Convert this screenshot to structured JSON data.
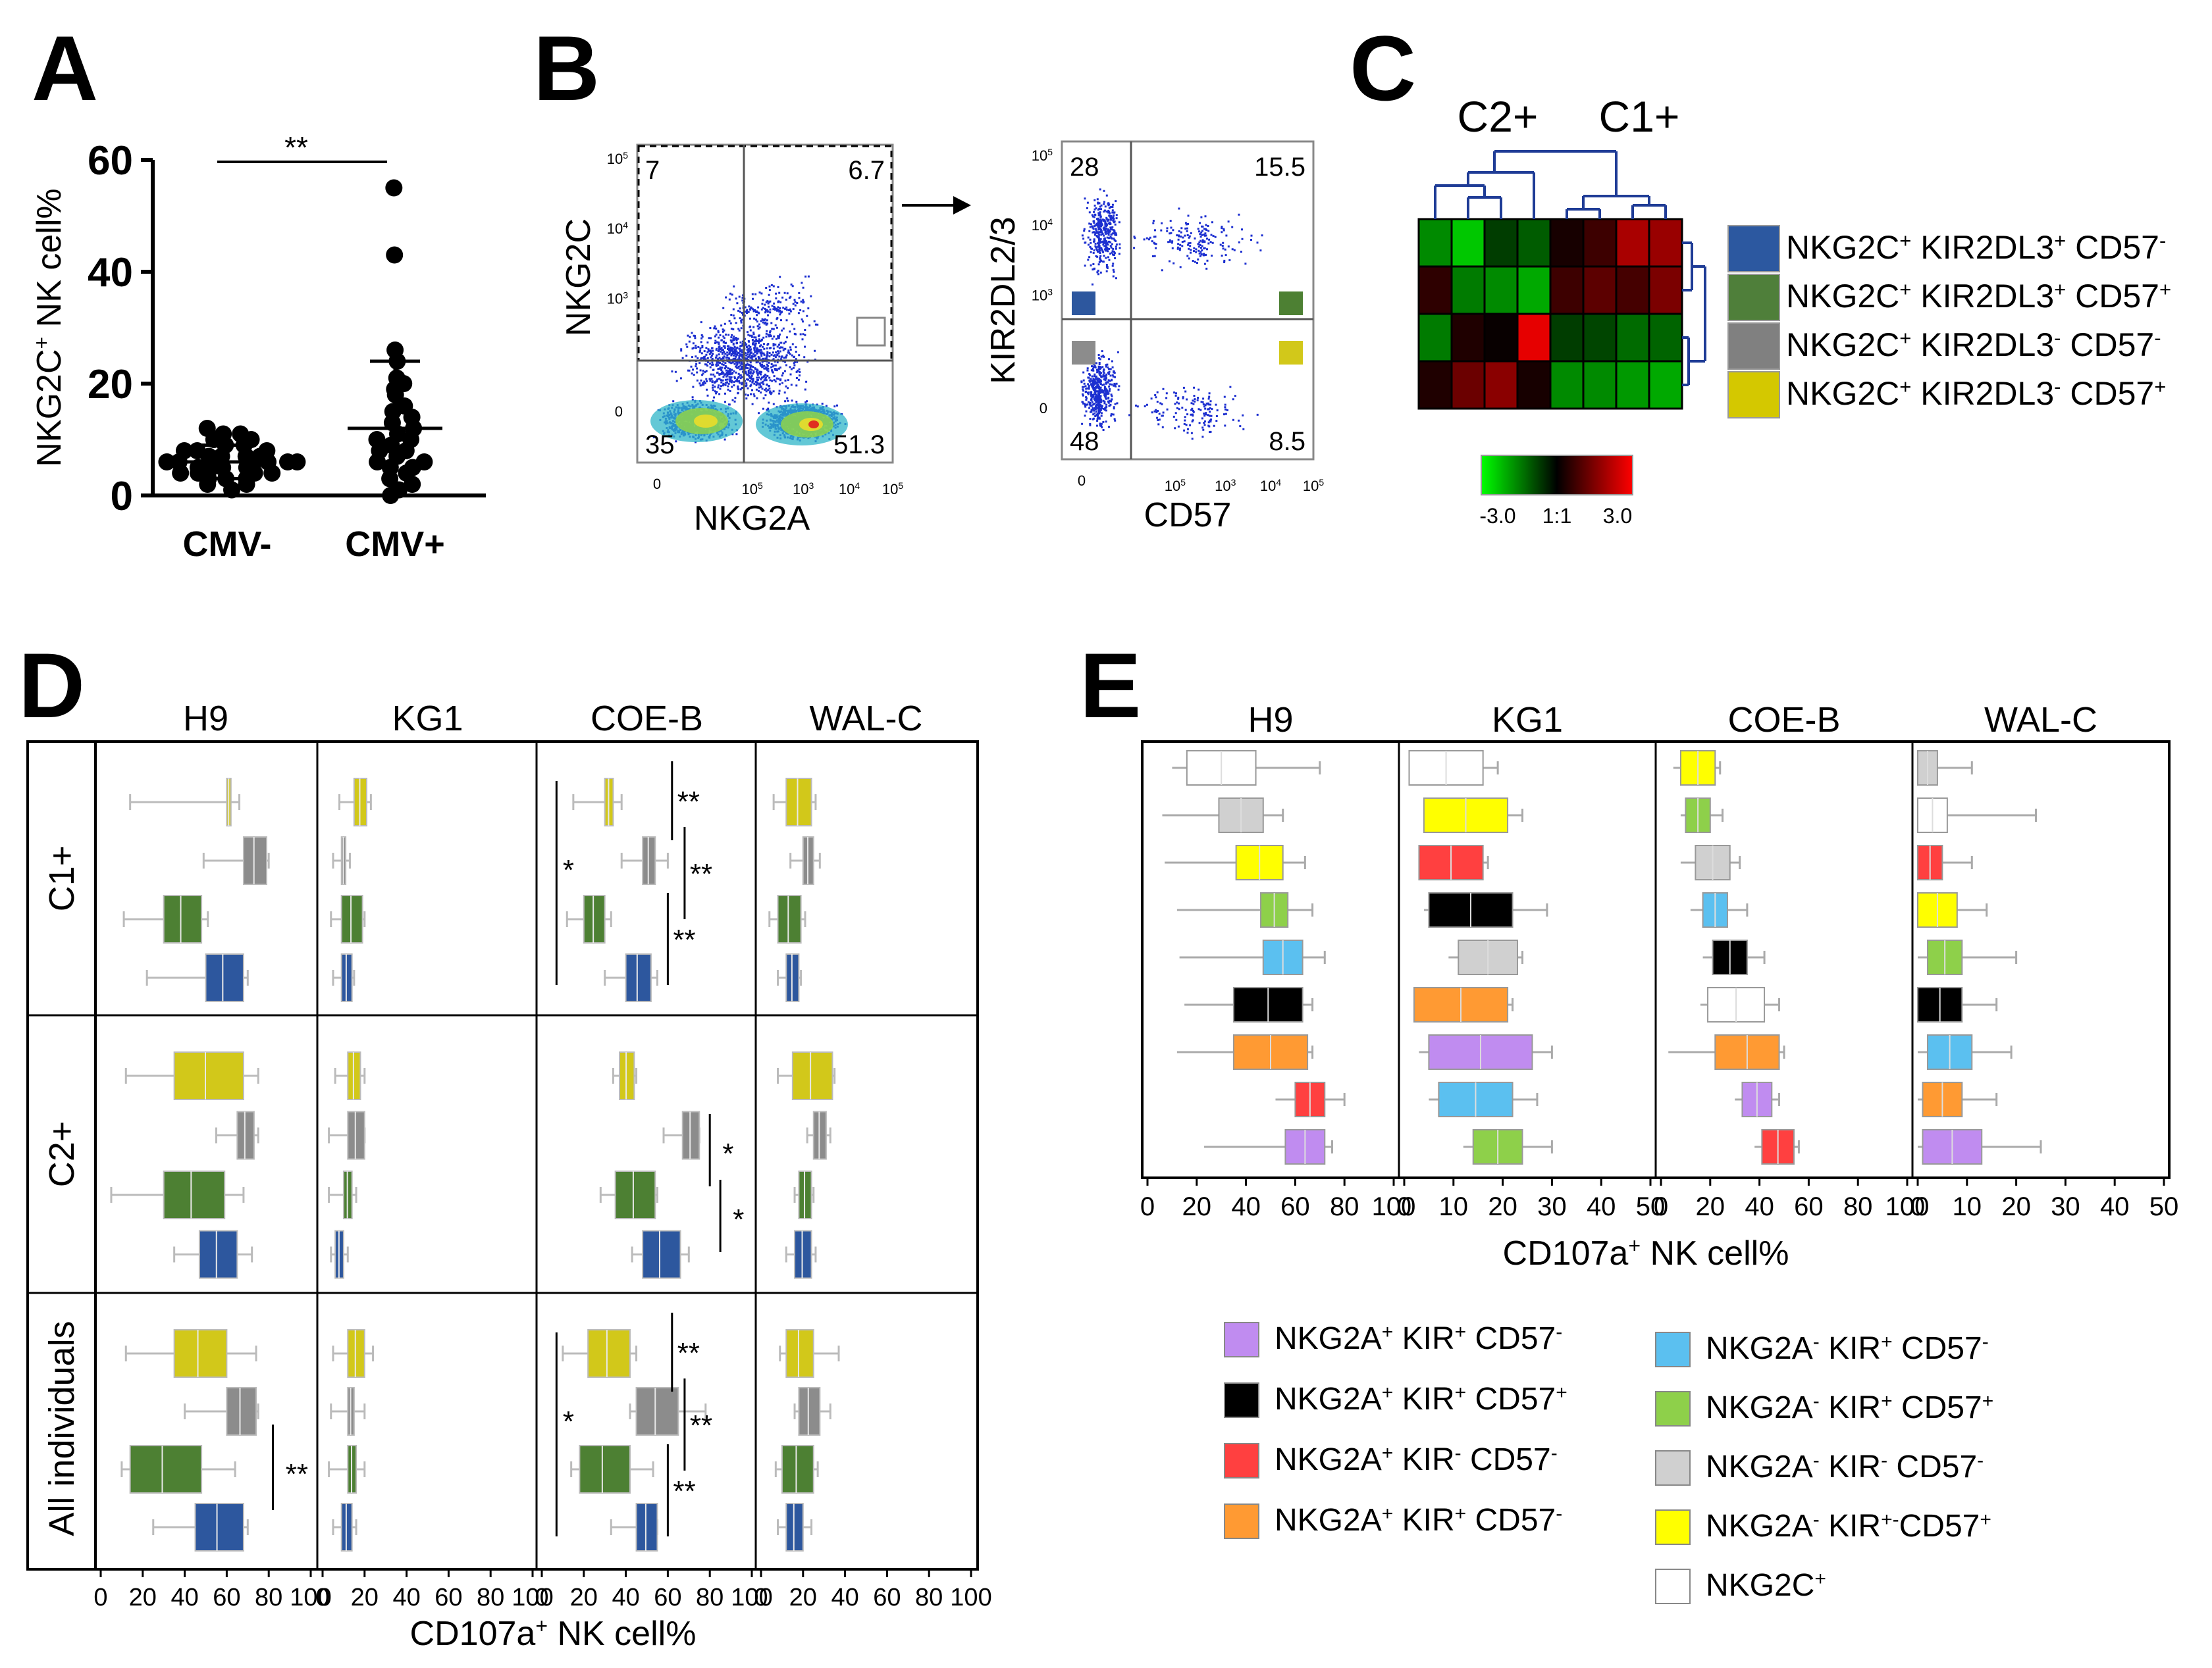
{
  "panel_letters": [
    "A",
    "B",
    "C",
    "D",
    "E"
  ],
  "chart_data": [
    {
      "panel": "A",
      "type": "scatter",
      "ylabel": "NKG2C⁺ NK cell%",
      "yticks": [
        "0",
        "20",
        "40",
        "60"
      ],
      "ylim": [
        0,
        60
      ],
      "categories": [
        "CMV-",
        "CMV+"
      ],
      "significance": "**",
      "groups": [
        {
          "name": "CMV-",
          "mean": 6,
          "sd_low": 3,
          "sd_high": 9,
          "values": [
            1,
            2,
            2,
            3,
            3,
            3,
            4,
            4,
            4,
            4,
            5,
            5,
            5,
            5,
            5,
            6,
            6,
            6,
            6,
            6,
            7,
            7,
            7,
            7,
            8,
            8,
            8,
            9,
            9,
            10,
            10,
            11,
            11,
            12
          ]
        },
        {
          "name": "CMV+",
          "mean": 12,
          "sd_low": 0,
          "sd_high": 24,
          "values": [
            0,
            1,
            2,
            3,
            4,
            5,
            5,
            6,
            6,
            7,
            8,
            8,
            9,
            10,
            10,
            11,
            12,
            13,
            14,
            15,
            16,
            18,
            19,
            20,
            21,
            24,
            26,
            43,
            55
          ]
        }
      ]
    },
    {
      "panel": "B",
      "type": "scatter",
      "subtype": "flow-cytometry",
      "plots": [
        {
          "xlabel": "NKG2A",
          "ylabel": "NKG2C",
          "quadrants": {
            "tl": "7",
            "tr": "6.7",
            "bl": "35",
            "br": "51.3"
          }
        },
        {
          "xlabel": "CD57",
          "ylabel": "KIR2DL2/3",
          "quadrants": {
            "tl": "28",
            "tr": "15.5",
            "bl": "48",
            "br": "8.5"
          }
        }
      ],
      "axis_ticks": [
        "0",
        "10",
        "10",
        "10",
        "10"
      ],
      "axis_exponents": [
        "3",
        "4",
        "5"
      ]
    },
    {
      "panel": "C",
      "type": "heatmap",
      "clusters": [
        "C2+",
        "C1+"
      ],
      "rows": [
        {
          "label_parts": [
            "NKG2C",
            "+",
            " KIR2DL3",
            "+",
            " CD57",
            "-"
          ],
          "color": "#2c58a0",
          "values": [
            -1.8,
            -2.6,
            -0.8,
            -1.2,
            0.3,
            0.8,
            2.2,
            2.0
          ]
        },
        {
          "label_parts": [
            "NKG2C",
            "+",
            " KIR2DL3",
            "+",
            " CD57",
            "+"
          ],
          "color": "#4f7f3a",
          "values": [
            0.6,
            -1.6,
            -1.8,
            -2.2,
            0.8,
            1.2,
            0.9,
            1.6
          ]
        },
        {
          "label_parts": [
            "NKG2C",
            "+",
            " KIR2DL3",
            "-",
            " CD57",
            "-"
          ],
          "color": "#808080",
          "values": [
            -1.6,
            0.4,
            0.1,
            3.0,
            -0.8,
            -0.9,
            -1.4,
            -1.3
          ]
        },
        {
          "label_parts": [
            "NKG2C",
            "+",
            " KIR2DL3",
            "-",
            " CD57",
            "+"
          ],
          "color": "#d4c800",
          "values": [
            0.4,
            1.4,
            1.8,
            0.3,
            -1.8,
            -1.8,
            -2.0,
            -2.2
          ]
        }
      ],
      "colorscale": {
        "low": "-3.0",
        "mid": "1:1",
        "high": "3.0"
      }
    },
    {
      "panel": "D",
      "type": "box",
      "columns": [
        "H9",
        "KG1",
        "COE-B",
        "WAL-C"
      ],
      "rows": [
        "C1+",
        "C2+",
        "All individuals"
      ],
      "xlabel": "CD107a⁺ NK cell%",
      "xticks": [
        "0",
        "20",
        "40",
        "60",
        "80",
        "100"
      ],
      "xlim": [
        0,
        100
      ],
      "series_colors": [
        "#d2c81a",
        "#8c8c8c",
        "#4d8033",
        "#2d579e"
      ],
      "boxes": [
        [
          [
            [
              14,
              60,
              62,
              66
            ],
            [
              49,
              68,
              79,
              80
            ],
            [
              11,
              30,
              48,
              51
            ],
            [
              22,
              50,
              68,
              70
            ]
          ],
          [
            [
              8,
              15,
              21,
              23
            ],
            [
              5,
              9,
              11,
              13
            ],
            [
              4,
              9,
              19,
              20
            ],
            [
              5,
              9,
              14,
              15
            ]
          ],
          [
            [
              15,
              30,
              34,
              38
            ],
            [
              38,
              48,
              54,
              60
            ],
            [
              12,
              20,
              30,
              33
            ],
            [
              30,
              40,
              52,
              55
            ]
          ],
          [
            [
              6,
              12,
              24,
              26
            ],
            [
              14,
              20,
              25,
              28
            ],
            [
              4,
              8,
              19,
              21
            ],
            [
              8,
              12,
              18,
              19
            ]
          ]
        ],
        [
          [
            [
              12,
              35,
              68,
              75
            ],
            [
              55,
              65,
              73,
              75
            ],
            [
              5,
              30,
              59,
              68
            ],
            [
              35,
              47,
              65,
              72
            ]
          ],
          [
            [
              6,
              12,
              18,
              20
            ],
            [
              3,
              12,
              20,
              20
            ],
            [
              3,
              10,
              14,
              16
            ],
            [
              4,
              6,
              10,
              12
            ]
          ],
          [
            [
              34,
              37,
              44,
              45
            ],
            [
              58,
              67,
              75,
              75
            ],
            [
              28,
              35,
              54,
              55
            ],
            [
              43,
              48,
              66,
              70
            ]
          ],
          [
            [
              8,
              15,
              34,
              35
            ],
            [
              22,
              25,
              31,
              33
            ],
            [
              16,
              18,
              24,
              25
            ],
            [
              12,
              16,
              24,
              26
            ]
          ]
        ],
        [
          [
            [
              12,
              35,
              60,
              74
            ],
            [
              40,
              60,
              74,
              75
            ],
            [
              10,
              14,
              48,
              64
            ],
            [
              25,
              45,
              68,
              70
            ]
          ],
          [
            [
              5,
              12,
              20,
              24
            ],
            [
              4,
              12,
              15,
              20
            ],
            [
              3,
              12,
              16,
              20
            ],
            [
              5,
              9,
              14,
              16
            ]
          ],
          [
            [
              10,
              22,
              42,
              45
            ],
            [
              42,
              45,
              65,
              78
            ],
            [
              14,
              18,
              42,
              53
            ],
            [
              33,
              45,
              55,
              55
            ]
          ],
          [
            [
              9,
              12,
              25,
              37
            ],
            [
              16,
              18,
              28,
              33
            ],
            [
              7,
              10,
              25,
              27
            ],
            [
              8,
              12,
              20,
              24
            ]
          ]
        ]
      ],
      "significance": [
        {
          "row": 0,
          "col": 2,
          "marks": [
            "**",
            "**",
            "**",
            "*"
          ]
        },
        {
          "row": 1,
          "col": 2,
          "marks": [
            "*",
            "*"
          ]
        },
        {
          "row": 2,
          "col": 0,
          "marks": [
            "**"
          ]
        },
        {
          "row": 2,
          "col": 2,
          "marks": [
            "**",
            "**",
            "**",
            "*"
          ]
        }
      ]
    },
    {
      "panel": "E",
      "type": "box",
      "columns": [
        "H9",
        "KG1",
        "COE-B",
        "WAL-C"
      ],
      "xlabel": "CD107a⁺ NK cell%",
      "column_ticks": [
        [
          "0",
          "20",
          "40",
          "60",
          "80",
          "100"
        ],
        [
          "0",
          "10",
          "20",
          "30",
          "40",
          "50"
        ],
        [
          "0",
          "20",
          "40",
          "60",
          "80",
          "100"
        ],
        [
          "0",
          "10",
          "20",
          "30",
          "40",
          "50"
        ]
      ],
      "column_max": [
        100,
        50,
        100,
        50
      ],
      "series_colors": [
        "#ffffff",
        "#ffff00",
        "#ff4040",
        "#000000",
        "#5bc0f0",
        "#8ed04a",
        "#ff9a33",
        "#c08cf0"
      ],
      "series_fills": [
        "#ffffff",
        "#d0d0d0",
        "#ffff00",
        "#8ed04a",
        "#5bc0f0",
        "#000000",
        "#ffffff",
        "#ff9a33",
        "#c08cf0",
        "#5bc0f0",
        "#ff4040"
      ],
      "boxes": [
        [
          [
            [
              10,
              16,
              44,
              70
            ],
            [
              6,
              29,
              47,
              55
            ],
            [
              7,
              36,
              55,
              64
            ],
            [
              12,
              46,
              57,
              67
            ],
            [
              13,
              47,
              63,
              72
            ],
            [
              15,
              35,
              63,
              67
            ],
            [
              12,
              35,
              65,
              67
            ],
            [
              52,
              60,
              72,
              80
            ],
            [
              23,
              56,
              72,
              75
            ]
          ],
          [
            [
              1,
              1,
              16,
              19
            ],
            [
              4,
              4,
              21,
              24
            ],
            [
              3,
              3,
              16,
              17
            ],
            [
              4,
              5,
              22,
              29
            ],
            [
              9,
              11,
              23,
              24
            ],
            [
              2,
              2,
              21,
              22
            ],
            [
              3,
              5,
              26,
              30
            ],
            [
              5,
              7,
              22,
              27
            ],
            [
              12,
              14,
              24,
              30
            ]
          ],
          [
            [
              5,
              8,
              22,
              24
            ],
            [
              8,
              10,
              20,
              25
            ],
            [
              8,
              14,
              28,
              32
            ],
            [
              12,
              17,
              27,
              35
            ],
            [
              17,
              21,
              35,
              42
            ],
            [
              16,
              19,
              42,
              48
            ],
            [
              3,
              22,
              48,
              50
            ],
            [
              30,
              33,
              45,
              48
            ],
            [
              38,
              41,
              54,
              56
            ]
          ],
          [
            [
              0,
              0,
              4,
              11
            ],
            [
              0,
              0,
              6,
              24
            ],
            [
              0,
              0,
              5,
              11
            ],
            [
              0,
              0,
              8,
              14
            ],
            [
              0,
              2,
              9,
              20
            ],
            [
              0,
              0,
              9,
              16
            ],
            [
              0,
              2,
              11,
              19
            ],
            [
              0,
              1,
              9,
              16
            ],
            [
              0,
              1,
              13,
              25
            ]
          ]
        ]
      ],
      "box_fills": [
        [
          "#ffffff",
          "#d0d0d0",
          "#ffff00",
          "#8ed04a",
          "#5bc0f0",
          "#000000",
          "#ff9a33",
          "#ff4040",
          "#c08cf0"
        ],
        [
          "#ffffff",
          "#ffff00",
          "#ff4040",
          "#000000",
          "#d0d0d0",
          "#ff9a33",
          "#c08cf0",
          "#5bc0f0",
          "#8ed04a"
        ],
        [
          "#ffff00",
          "#8ed04a",
          "#d0d0d0",
          "#5bc0f0",
          "#000000",
          "#ffffff",
          "#ff9a33",
          "#c08cf0",
          "#ff4040"
        ],
        [
          "#d0d0d0",
          "#ffffff",
          "#ff4040",
          "#ffff00",
          "#8ed04a",
          "#000000",
          "#5bc0f0",
          "#ff9a33",
          "#c08cf0"
        ]
      ],
      "legend": [
        {
          "parts": [
            "NKG2A",
            "+",
            " KIR",
            "+",
            " CD57",
            "-"
          ],
          "color": "#c08cf0"
        },
        {
          "parts": [
            "NKG2A",
            "+",
            " KIR",
            "+",
            " CD57",
            "+"
          ],
          "color": "#000000"
        },
        {
          "parts": [
            "NKG2A",
            "+",
            " KIR",
            "-",
            " CD57",
            "-"
          ],
          "color": "#ff4040"
        },
        {
          "parts": [
            "NKG2A",
            "+",
            " KIR",
            "+",
            " CD57",
            "-"
          ],
          "color": "#ff9a33"
        },
        {
          "parts": [
            "NKG2A",
            "-",
            " KIR",
            "+",
            " CD57",
            "-"
          ],
          "color": "#5bc0f0"
        },
        {
          "parts": [
            "NKG2A",
            "-",
            " KIR",
            "+",
            " CD57",
            "+"
          ],
          "color": "#8ed04a"
        },
        {
          "parts": [
            "NKG2A",
            "-",
            " KIR",
            "-",
            " CD57",
            "-"
          ],
          "color": "#d0d0d0"
        },
        {
          "parts": [
            "NKG2A",
            "-",
            " KIR",
            "+-",
            "CD57",
            "+"
          ],
          "color": "#ffff00"
        },
        {
          "parts": [
            "NKG2C",
            "+",
            "",
            "",
            "",
            ""
          ],
          "color": "#ffffff"
        }
      ]
    }
  ]
}
